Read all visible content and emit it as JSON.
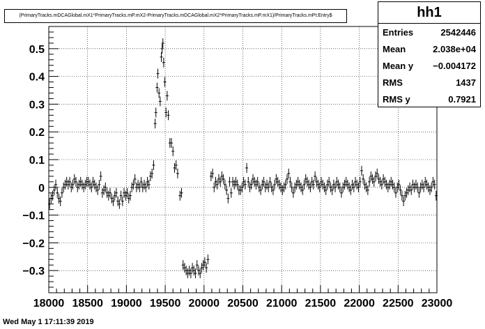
{
  "chart_data": {
    "type": "scatter",
    "title": "(PrimaryTracks.mDCAGlobal.mX1*PrimaryTracks.mP.mX2-PrimaryTracks.mDCAGlobal.mX2*PrimaryTracks.mP.mX1)/PrimaryTracks.mPt:Entry$",
    "xlim": [
      18000,
      23000
    ],
    "ylim": [
      -0.38,
      0.58
    ],
    "grid": true,
    "xticks": [
      18000,
      18500,
      19000,
      19500,
      20000,
      20500,
      21000,
      21500,
      22000,
      22500,
      23000
    ],
    "xtick_labels": [
      "18000",
      "18500",
      "19000",
      "19500",
      "20000",
      "20500",
      "21000",
      "21500",
      "22000",
      "22500",
      "23000"
    ],
    "yticks": [
      -0.3,
      -0.2,
      -0.1,
      0,
      0.1,
      0.2,
      0.3,
      0.4,
      0.5
    ],
    "ytick_labels": [
      "−0.3",
      "−0.2",
      "−0.1",
      "0",
      "0.1",
      "0.2",
      "0.3",
      "0.4",
      "0.5"
    ],
    "points": [
      [
        18010,
        -0.06
      ],
      [
        18030,
        -0.04
      ],
      [
        18050,
        -0.03
      ],
      [
        18070,
        -0.01
      ],
      [
        18090,
        0.01
      ],
      [
        18110,
        -0.02
      ],
      [
        18130,
        -0.04
      ],
      [
        18150,
        -0.05
      ],
      [
        18170,
        -0.02
      ],
      [
        18190,
        0.0
      ],
      [
        18210,
        0.01
      ],
      [
        18230,
        0.02
      ],
      [
        18250,
        0.01
      ],
      [
        18270,
        0.02
      ],
      [
        18290,
        0.0
      ],
      [
        18310,
        0.01
      ],
      [
        18330,
        0.03
      ],
      [
        18350,
        0.02
      ],
      [
        18370,
        0.0
      ],
      [
        18390,
        0.01
      ],
      [
        18410,
        0.02
      ],
      [
        18430,
        0.01
      ],
      [
        18450,
        0.0
      ],
      [
        18470,
        0.01
      ],
      [
        18490,
        0.02
      ],
      [
        18510,
        0.02
      ],
      [
        18530,
        0.01
      ],
      [
        18550,
        0.0
      ],
      [
        18570,
        0.02
      ],
      [
        18590,
        0.01
      ],
      [
        18610,
        0.0
      ],
      [
        18630,
        -0.01
      ],
      [
        18650,
        0.01
      ],
      [
        18670,
        0.04
      ],
      [
        18690,
        -0.02
      ],
      [
        18710,
        -0.01
      ],
      [
        18730,
        0.0
      ],
      [
        18750,
        -0.02
      ],
      [
        18770,
        -0.03
      ],
      [
        18790,
        -0.02
      ],
      [
        18810,
        -0.04
      ],
      [
        18830,
        -0.05
      ],
      [
        18850,
        -0.03
      ],
      [
        18870,
        -0.02
      ],
      [
        18890,
        -0.05
      ],
      [
        18910,
        -0.06
      ],
      [
        18930,
        -0.03
      ],
      [
        18950,
        -0.05
      ],
      [
        18970,
        -0.02
      ],
      [
        18990,
        -0.03
      ],
      [
        19010,
        -0.02
      ],
      [
        19030,
        -0.04
      ],
      [
        19050,
        -0.03
      ],
      [
        19070,
        0.0
      ],
      [
        19090,
        0.01
      ],
      [
        19110,
        0.03
      ],
      [
        19130,
        0.0
      ],
      [
        19150,
        0.01
      ],
      [
        19170,
        0.0
      ],
      [
        19190,
        0.02
      ],
      [
        19210,
        0.0
      ],
      [
        19230,
        0.01
      ],
      [
        19250,
        0.0
      ],
      [
        19270,
        0.02
      ],
      [
        19290,
        0.01
      ],
      [
        19310,
        0.04
      ],
      [
        19330,
        0.05
      ],
      [
        19350,
        0.08
      ],
      [
        19370,
        0.23
      ],
      [
        19380,
        0.27
      ],
      [
        19395,
        0.36
      ],
      [
        19405,
        0.41
      ],
      [
        19420,
        0.34
      ],
      [
        19435,
        0.31
      ],
      [
        19450,
        0.47
      ],
      [
        19460,
        0.5
      ],
      [
        19470,
        0.52
      ],
      [
        19480,
        0.45
      ],
      [
        19495,
        0.38
      ],
      [
        19510,
        0.27
      ],
      [
        19525,
        0.33
      ],
      [
        19540,
        0.26
      ],
      [
        19560,
        0.16
      ],
      [
        19580,
        0.16
      ],
      [
        19600,
        0.13
      ],
      [
        19620,
        0.07
      ],
      [
        19640,
        0.08
      ],
      [
        19660,
        0.05
      ],
      [
        19690,
        -0.03
      ],
      [
        19710,
        -0.02
      ],
      [
        19730,
        -0.28
      ],
      [
        19750,
        -0.29
      ],
      [
        19770,
        -0.3
      ],
      [
        19790,
        -0.31
      ],
      [
        19810,
        -0.3
      ],
      [
        19830,
        -0.31
      ],
      [
        19850,
        -0.29
      ],
      [
        19870,
        -0.3
      ],
      [
        19890,
        -0.31
      ],
      [
        19910,
        -0.28
      ],
      [
        19930,
        -0.3
      ],
      [
        19950,
        -0.31
      ],
      [
        19970,
        -0.29
      ],
      [
        19990,
        -0.28
      ],
      [
        20010,
        -0.27
      ],
      [
        20030,
        -0.29
      ],
      [
        20050,
        -0.26
      ],
      [
        20090,
        0.04
      ],
      [
        20110,
        0.05
      ],
      [
        20130,
        0.0
      ],
      [
        20150,
        0.02
      ],
      [
        20170,
        0.01
      ],
      [
        20190,
        0.03
      ],
      [
        20210,
        0.02
      ],
      [
        20230,
        0.04
      ],
      [
        20250,
        0.03
      ],
      [
        20270,
        0.01
      ],
      [
        20290,
        -0.01
      ],
      [
        20310,
        -0.04
      ],
      [
        20330,
        0.02
      ],
      [
        20350,
        -0.02
      ],
      [
        20370,
        0.02
      ],
      [
        20390,
        0.01
      ],
      [
        20410,
        0.02
      ],
      [
        20430,
        0.01
      ],
      [
        20450,
        -0.01
      ],
      [
        20470,
        -0.01
      ],
      [
        20490,
        0.0
      ],
      [
        20510,
        0.02
      ],
      [
        20530,
        0.01
      ],
      [
        20550,
        0.07
      ],
      [
        20570,
        0.02
      ],
      [
        20590,
        0.0
      ],
      [
        20610,
        0.01
      ],
      [
        20630,
        0.03
      ],
      [
        20650,
        0.02
      ],
      [
        20670,
        0.01
      ],
      [
        20690,
        0.02
      ],
      [
        20710,
        0.0
      ],
      [
        20730,
        -0.01
      ],
      [
        20750,
        0.01
      ],
      [
        20770,
        0.02
      ],
      [
        20790,
        0.0
      ],
      [
        20810,
        0.01
      ],
      [
        20830,
        0.0
      ],
      [
        20850,
        0.02
      ],
      [
        20870,
        0.0
      ],
      [
        20890,
        -0.01
      ],
      [
        20910,
        0.01
      ],
      [
        20930,
        0.03
      ],
      [
        20950,
        0.02
      ],
      [
        20970,
        0.01
      ],
      [
        20990,
        0.0
      ],
      [
        21010,
        -0.01
      ],
      [
        21030,
        0.0
      ],
      [
        21050,
        0.01
      ],
      [
        21070,
        0.03
      ],
      [
        21090,
        0.05
      ],
      [
        21110,
        0.02
      ],
      [
        21130,
        0.0
      ],
      [
        21150,
        -0.02
      ],
      [
        21170,
        0.0
      ],
      [
        21190,
        0.01
      ],
      [
        21210,
        0.02
      ],
      [
        21230,
        0.01
      ],
      [
        21250,
        0.0
      ],
      [
        21270,
        -0.01
      ],
      [
        21290,
        0.01
      ],
      [
        21310,
        0.03
      ],
      [
        21330,
        0.02
      ],
      [
        21350,
        0.01
      ],
      [
        21370,
        0.0
      ],
      [
        21390,
        0.02
      ],
      [
        21410,
        0.01
      ],
      [
        21430,
        0.04
      ],
      [
        21450,
        0.02
      ],
      [
        21470,
        0.01
      ],
      [
        21490,
        0.0
      ],
      [
        21510,
        0.02
      ],
      [
        21530,
        0.01
      ],
      [
        21550,
        0.0
      ],
      [
        21570,
        -0.01
      ],
      [
        21590,
        0.01
      ],
      [
        21610,
        0.02
      ],
      [
        21630,
        0.0
      ],
      [
        21650,
        -0.01
      ],
      [
        21670,
        0.01
      ],
      [
        21690,
        0.0
      ],
      [
        21710,
        0.02
      ],
      [
        21730,
        0.01
      ],
      [
        21750,
        0.0
      ],
      [
        21770,
        -0.02
      ],
      [
        21790,
        0.0
      ],
      [
        21810,
        0.01
      ],
      [
        21830,
        0.02
      ],
      [
        21850,
        0.01
      ],
      [
        21870,
        0.0
      ],
      [
        21890,
        -0.01
      ],
      [
        21910,
        0.01
      ],
      [
        21930,
        0.0
      ],
      [
        21950,
        0.02
      ],
      [
        21970,
        0.01
      ],
      [
        21990,
        0.0
      ],
      [
        22010,
        0.02
      ],
      [
        22030,
        0.06
      ],
      [
        22050,
        0.03
      ],
      [
        22070,
        0.01
      ],
      [
        22090,
        0.0
      ],
      [
        22110,
        -0.01
      ],
      [
        22130,
        0.02
      ],
      [
        22150,
        0.04
      ],
      [
        22170,
        0.03
      ],
      [
        22190,
        0.02
      ],
      [
        22210,
        0.04
      ],
      [
        22230,
        0.05
      ],
      [
        22250,
        0.03
      ],
      [
        22270,
        0.02
      ],
      [
        22290,
        0.01
      ],
      [
        22310,
        0.03
      ],
      [
        22330,
        0.02
      ],
      [
        22350,
        0.01
      ],
      [
        22370,
        0.0
      ],
      [
        22390,
        0.01
      ],
      [
        22410,
        0.02
      ],
      [
        22430,
        0.01
      ],
      [
        22450,
        0.0
      ],
      [
        22470,
        -0.02
      ],
      [
        22490,
        0.0
      ],
      [
        22510,
        0.01
      ],
      [
        22530,
        -0.01
      ],
      [
        22550,
        -0.03
      ],
      [
        22570,
        -0.05
      ],
      [
        22590,
        -0.03
      ],
      [
        22610,
        -0.02
      ],
      [
        22630,
        -0.01
      ],
      [
        22650,
        0.0
      ],
      [
        22670,
        -0.01
      ],
      [
        22690,
        0.01
      ],
      [
        22710,
        0.0
      ],
      [
        22730,
        0.01
      ],
      [
        22750,
        0.0
      ],
      [
        22770,
        -0.02
      ],
      [
        22790,
        0.0
      ],
      [
        22810,
        0.01
      ],
      [
        22830,
        0.0
      ],
      [
        22850,
        0.02
      ],
      [
        22870,
        0.01
      ],
      [
        22890,
        0.0
      ],
      [
        22910,
        -0.01
      ],
      [
        22930,
        0.0
      ],
      [
        22950,
        0.02
      ],
      [
        22970,
        0.01
      ],
      [
        22990,
        -0.03
      ]
    ]
  },
  "stats": {
    "name": "hh1",
    "rows": [
      {
        "key": "Entries",
        "value": "2542446"
      },
      {
        "key": "Mean",
        "value": "2.038e+04"
      },
      {
        "key": "Mean y",
        "value": "−0.004172"
      },
      {
        "key": "RMS",
        "value": "1437"
      },
      {
        "key": "RMS y",
        "value": "0.7921"
      }
    ]
  },
  "timestamp": "Wed May  1 17:11:39 2019"
}
